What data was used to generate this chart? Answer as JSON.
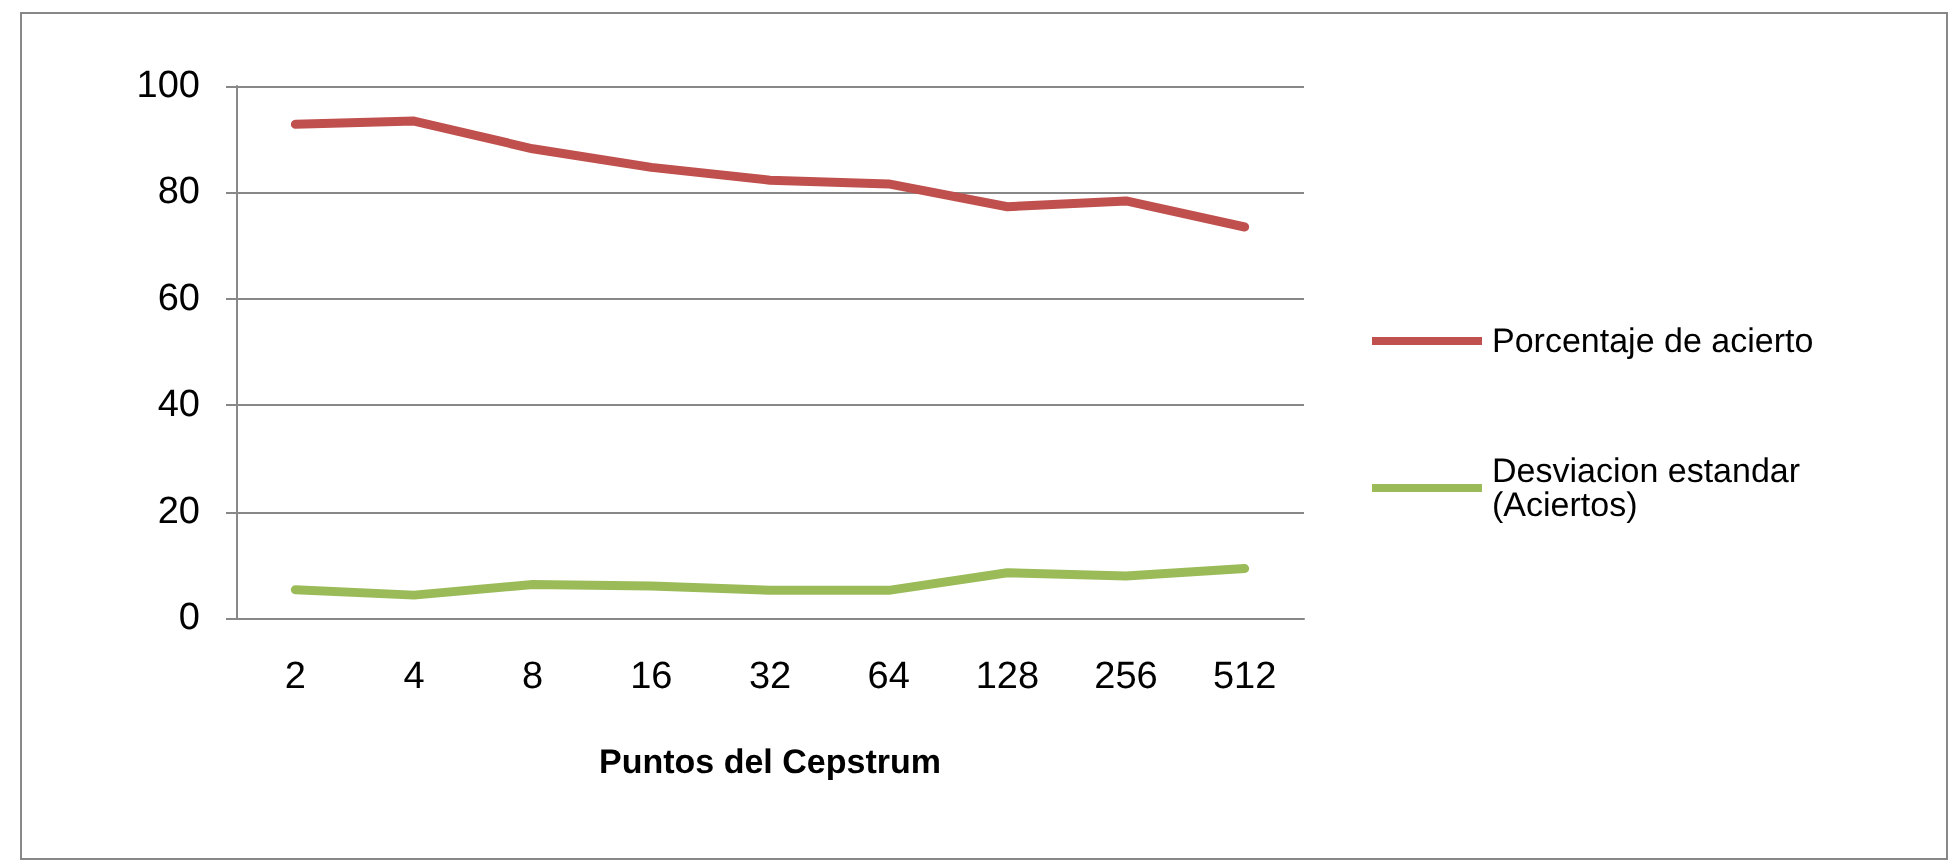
{
  "chart_data": {
    "type": "line",
    "xlabel": "Puntos del Cepstrum",
    "categories": [
      "2",
      "4",
      "8",
      "16",
      "32",
      "64",
      "128",
      "256",
      "512"
    ],
    "series": [
      {
        "name": "Porcentaje de acierto",
        "color": "#c0504d",
        "values": [
          92.8,
          93.4,
          88.2,
          84.7,
          82.3,
          81.6,
          77.3,
          78.4,
          73.5
        ]
      },
      {
        "name": "Desviacion estandar (Aciertos)",
        "color": "#9bbb59",
        "values": [
          5.3,
          4.3,
          6.3,
          6.0,
          5.2,
          5.2,
          8.5,
          7.9,
          9.3
        ]
      }
    ],
    "ylim": [
      0,
      100
    ],
    "yticks": [
      0,
      20,
      40,
      60,
      80,
      100
    ],
    "grid": "y",
    "legend": "right",
    "marker": "none",
    "line_style": "solid"
  }
}
